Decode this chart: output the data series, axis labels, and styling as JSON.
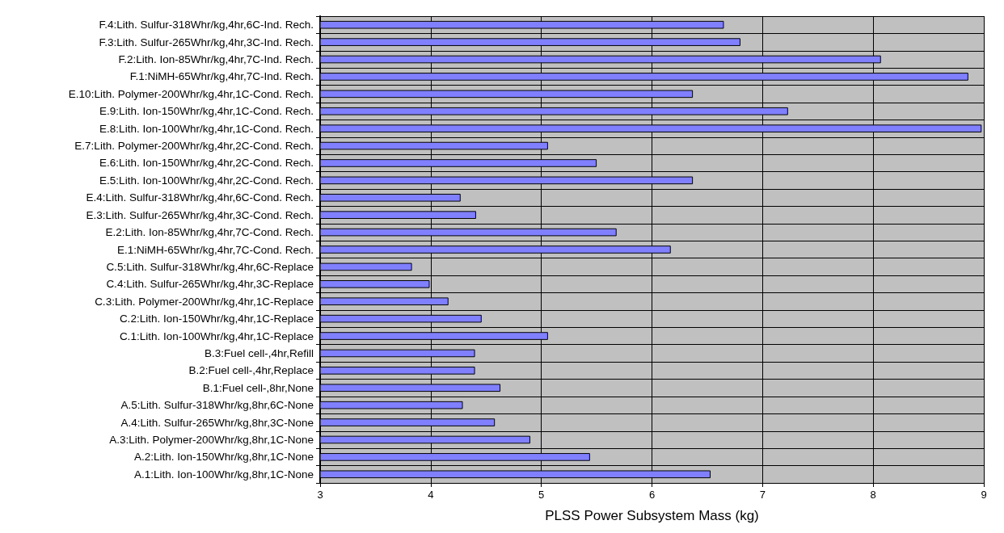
{
  "chart_data": {
    "type": "bar",
    "orientation": "horizontal",
    "xlabel": "PLSS Power Subsystem Mass (kg)",
    "categories": [
      "F.4:Lith. Sulfur-318Whr/kg,4hr,6C-Ind. Rech.",
      "F.3:Lith. Sulfur-265Whr/kg,4hr,3C-Ind. Rech.",
      "F.2:Lith. Ion-85Whr/kg,4hr,7C-Ind. Rech.",
      "F.1:NiMH-65Whr/kg,4hr,7C-Ind. Rech.",
      "E.10:Lith. Polymer-200Whr/kg,4hr,1C-Cond. Rech.",
      "E.9:Lith. Ion-150Whr/kg,4hr,1C-Cond. Rech.",
      "E.8:Lith. Ion-100Whr/kg,4hr,1C-Cond. Rech.",
      "E.7:Lith. Polymer-200Whr/kg,4hr,2C-Cond. Rech.",
      "E.6:Lith. Ion-150Whr/kg,4hr,2C-Cond. Rech.",
      "E.5:Lith. Ion-100Whr/kg,4hr,2C-Cond. Rech.",
      "E.4:Lith. Sulfur-318Whr/kg,4hr,6C-Cond. Rech.",
      "E.3:Lith. Sulfur-265Whr/kg,4hr,3C-Cond. Rech.",
      "E.2:Lith. Ion-85Whr/kg,4hr,7C-Cond. Rech.",
      "E.1:NiMH-65Whr/kg,4hr,7C-Cond. Rech.",
      "C.5:Lith. Sulfur-318Whr/kg,4hr,6C-Replace",
      "C.4:Lith. Sulfur-265Whr/kg,4hr,3C-Replace",
      "C.3:Lith. Polymer-200Whr/kg,4hr,1C-Replace",
      "C.2:Lith. Ion-150Whr/kg,4hr,1C-Replace",
      "C.1:Lith. Ion-100Whr/kg,4hr,1C-Replace",
      "B.3:Fuel cell-,4hr,Refill",
      "B.2:Fuel cell-,4hr,Replace",
      "B.1:Fuel cell-,8hr,None",
      "A.5:Lith. Sulfur-318Whr/kg,8hr,6C-None",
      "A.4:Lith. Sulfur-265Whr/kg,8hr,3C-None",
      "A.3:Lith. Polymer-200Whr/kg,8hr,1C-None",
      "A.2:Lith. Ion-150Whr/kg,8hr,1C-None",
      "A.1:Lith. Ion-100Whr/kg,8hr,1C-None"
    ],
    "values": [
      6.65,
      6.8,
      8.07,
      8.86,
      6.37,
      7.23,
      8.98,
      5.06,
      5.5,
      6.37,
      4.27,
      4.41,
      5.68,
      6.17,
      3.83,
      3.99,
      4.16,
      4.46,
      5.06,
      4.4,
      4.4,
      4.63,
      4.29,
      4.58,
      4.9,
      5.44,
      6.53
    ],
    "color": "#8080ff",
    "xlim": [
      3,
      9
    ],
    "xticks": [
      3,
      4,
      5,
      6,
      7,
      8,
      9
    ],
    "grid": true
  }
}
